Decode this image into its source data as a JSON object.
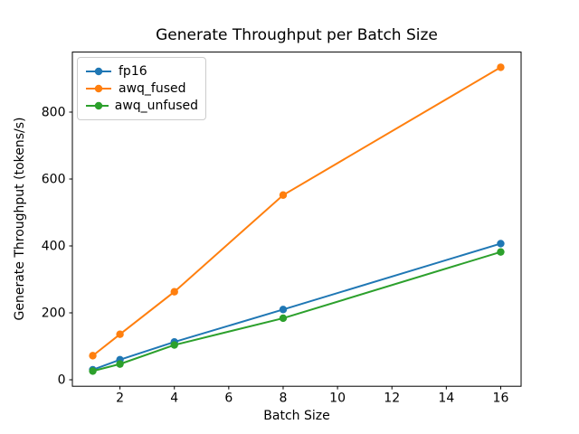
{
  "figure": {
    "background_color": "#ffffff",
    "text_color": "#000000",
    "spine_color": "#000000",
    "legend_border_color": "#cccccc"
  },
  "chart_data": {
    "type": "line",
    "title": "Generate Throughput per Batch Size",
    "xlabel": "Batch Size",
    "ylabel": "Generate Throughput (tokens/s)",
    "x": [
      1,
      2,
      4,
      8,
      16
    ],
    "series": [
      {
        "name": "fp16",
        "color": "#1f77b4",
        "values": [
          30,
          60,
          113,
          210,
          407
        ]
      },
      {
        "name": "awq_fused",
        "color": "#ff7f0e",
        "values": [
          72,
          136,
          263,
          552,
          934
        ]
      },
      {
        "name": "awq_unfused",
        "color": "#2ca02c",
        "values": [
          26,
          47,
          104,
          184,
          382
        ]
      }
    ],
    "xticks": [
      2,
      4,
      6,
      8,
      10,
      12,
      14,
      16
    ],
    "yticks": [
      0,
      200,
      400,
      600,
      800
    ],
    "xlim": [
      0.25,
      16.75
    ],
    "ylim": [
      -19.4,
      979.4
    ],
    "grid": false,
    "marker": "o",
    "legend_position": "upper left",
    "legend_entries": [
      "fp16",
      "awq_fused",
      "awq_unfused"
    ]
  }
}
